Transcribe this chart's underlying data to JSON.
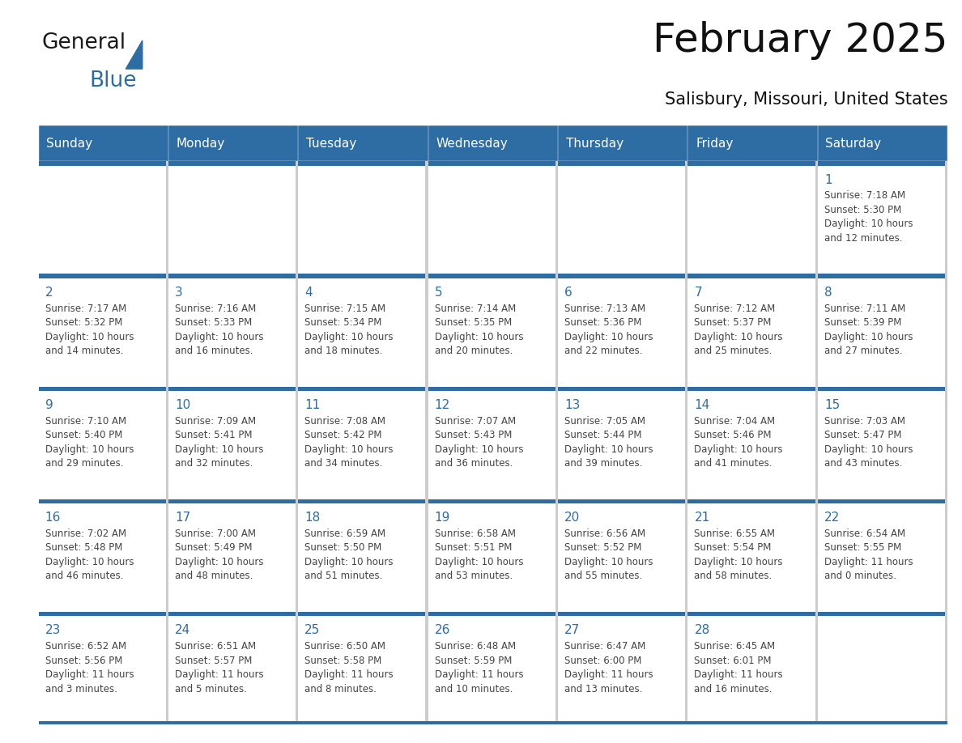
{
  "title": "February 2025",
  "subtitle": "Salisbury, Missouri, United States",
  "header_bg": "#2E6DA4",
  "header_text_color": "#FFFFFF",
  "cell_bg": "#FFFFFF",
  "day_row_bg": "#E8E8E8",
  "border_color": "#2E6DA4",
  "day_number_color": "#2E6DA4",
  "text_color": "#444444",
  "days_of_week": [
    "Sunday",
    "Monday",
    "Tuesday",
    "Wednesday",
    "Thursday",
    "Friday",
    "Saturday"
  ],
  "weeks": [
    [
      {
        "day": null,
        "info": null
      },
      {
        "day": null,
        "info": null
      },
      {
        "day": null,
        "info": null
      },
      {
        "day": null,
        "info": null
      },
      {
        "day": null,
        "info": null
      },
      {
        "day": null,
        "info": null
      },
      {
        "day": 1,
        "info": "Sunrise: 7:18 AM\nSunset: 5:30 PM\nDaylight: 10 hours\nand 12 minutes."
      }
    ],
    [
      {
        "day": 2,
        "info": "Sunrise: 7:17 AM\nSunset: 5:32 PM\nDaylight: 10 hours\nand 14 minutes."
      },
      {
        "day": 3,
        "info": "Sunrise: 7:16 AM\nSunset: 5:33 PM\nDaylight: 10 hours\nand 16 minutes."
      },
      {
        "day": 4,
        "info": "Sunrise: 7:15 AM\nSunset: 5:34 PM\nDaylight: 10 hours\nand 18 minutes."
      },
      {
        "day": 5,
        "info": "Sunrise: 7:14 AM\nSunset: 5:35 PM\nDaylight: 10 hours\nand 20 minutes."
      },
      {
        "day": 6,
        "info": "Sunrise: 7:13 AM\nSunset: 5:36 PM\nDaylight: 10 hours\nand 22 minutes."
      },
      {
        "day": 7,
        "info": "Sunrise: 7:12 AM\nSunset: 5:37 PM\nDaylight: 10 hours\nand 25 minutes."
      },
      {
        "day": 8,
        "info": "Sunrise: 7:11 AM\nSunset: 5:39 PM\nDaylight: 10 hours\nand 27 minutes."
      }
    ],
    [
      {
        "day": 9,
        "info": "Sunrise: 7:10 AM\nSunset: 5:40 PM\nDaylight: 10 hours\nand 29 minutes."
      },
      {
        "day": 10,
        "info": "Sunrise: 7:09 AM\nSunset: 5:41 PM\nDaylight: 10 hours\nand 32 minutes."
      },
      {
        "day": 11,
        "info": "Sunrise: 7:08 AM\nSunset: 5:42 PM\nDaylight: 10 hours\nand 34 minutes."
      },
      {
        "day": 12,
        "info": "Sunrise: 7:07 AM\nSunset: 5:43 PM\nDaylight: 10 hours\nand 36 minutes."
      },
      {
        "day": 13,
        "info": "Sunrise: 7:05 AM\nSunset: 5:44 PM\nDaylight: 10 hours\nand 39 minutes."
      },
      {
        "day": 14,
        "info": "Sunrise: 7:04 AM\nSunset: 5:46 PM\nDaylight: 10 hours\nand 41 minutes."
      },
      {
        "day": 15,
        "info": "Sunrise: 7:03 AM\nSunset: 5:47 PM\nDaylight: 10 hours\nand 43 minutes."
      }
    ],
    [
      {
        "day": 16,
        "info": "Sunrise: 7:02 AM\nSunset: 5:48 PM\nDaylight: 10 hours\nand 46 minutes."
      },
      {
        "day": 17,
        "info": "Sunrise: 7:00 AM\nSunset: 5:49 PM\nDaylight: 10 hours\nand 48 minutes."
      },
      {
        "day": 18,
        "info": "Sunrise: 6:59 AM\nSunset: 5:50 PM\nDaylight: 10 hours\nand 51 minutes."
      },
      {
        "day": 19,
        "info": "Sunrise: 6:58 AM\nSunset: 5:51 PM\nDaylight: 10 hours\nand 53 minutes."
      },
      {
        "day": 20,
        "info": "Sunrise: 6:56 AM\nSunset: 5:52 PM\nDaylight: 10 hours\nand 55 minutes."
      },
      {
        "day": 21,
        "info": "Sunrise: 6:55 AM\nSunset: 5:54 PM\nDaylight: 10 hours\nand 58 minutes."
      },
      {
        "day": 22,
        "info": "Sunrise: 6:54 AM\nSunset: 5:55 PM\nDaylight: 11 hours\nand 0 minutes."
      }
    ],
    [
      {
        "day": 23,
        "info": "Sunrise: 6:52 AM\nSunset: 5:56 PM\nDaylight: 11 hours\nand 3 minutes."
      },
      {
        "day": 24,
        "info": "Sunrise: 6:51 AM\nSunset: 5:57 PM\nDaylight: 11 hours\nand 5 minutes."
      },
      {
        "day": 25,
        "info": "Sunrise: 6:50 AM\nSunset: 5:58 PM\nDaylight: 11 hours\nand 8 minutes."
      },
      {
        "day": 26,
        "info": "Sunrise: 6:48 AM\nSunset: 5:59 PM\nDaylight: 11 hours\nand 10 minutes."
      },
      {
        "day": 27,
        "info": "Sunrise: 6:47 AM\nSunset: 6:00 PM\nDaylight: 11 hours\nand 13 minutes."
      },
      {
        "day": 28,
        "info": "Sunrise: 6:45 AM\nSunset: 6:01 PM\nDaylight: 11 hours\nand 16 minutes."
      },
      {
        "day": null,
        "info": null
      }
    ]
  ],
  "logo_text1": "General",
  "logo_text2": "Blue",
  "logo_color1": "#1a1a1a",
  "logo_color2": "#2E6DA4",
  "logo_triangle_color": "#2E6DA4",
  "title_fontsize": 36,
  "subtitle_fontsize": 15,
  "header_fontsize": 11,
  "day_number_fontsize": 11,
  "info_fontsize": 8.5
}
